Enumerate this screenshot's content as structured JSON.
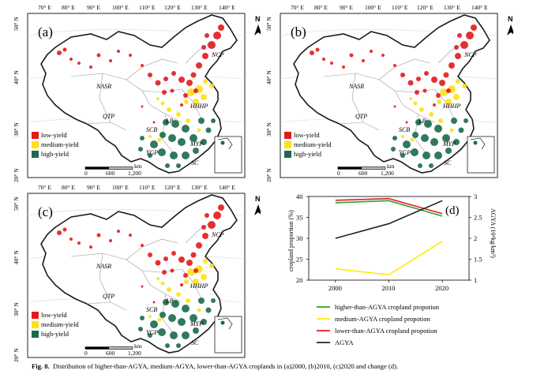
{
  "maps": {
    "lon_labels": [
      "70° E",
      "80° E",
      "90° E",
      "100° E",
      "110° E",
      "120° E",
      "130° E",
      "140° E"
    ],
    "lat_labels": [
      "50° N",
      "40° N",
      "30° N",
      "20° N"
    ],
    "north": "N",
    "regions": {
      "ncp": "NCP",
      "nasr": "NASR",
      "qtp": "QTP",
      "hhhp": "HHHP",
      "lp": "LP",
      "scb": "SCB",
      "myp": "MYP",
      "ygp": "YGP",
      "sc": "SC"
    },
    "legend": [
      {
        "label": "low-yield",
        "color": "#e31a1c"
      },
      {
        "label": "medium-yield",
        "color": "#ffe11a"
      },
      {
        "label": "high-yield",
        "color": "#1b6b4a"
      }
    ],
    "scale": {
      "unit": "km",
      "ticks": [
        "0",
        "600",
        "1,200"
      ]
    },
    "panels": [
      {
        "label": "(a)"
      },
      {
        "label": "(b)"
      },
      {
        "label": "(c)"
      }
    ]
  },
  "chart_data": {
    "type": "line",
    "panel_label": "(d)",
    "x": [
      2000,
      2010,
      2020
    ],
    "x_tick_labels": [
      "2000",
      "2010",
      "2020"
    ],
    "ylabel": "cropland proportion (%)",
    "ylim": [
      20,
      40
    ],
    "y_ticks": [
      20,
      25,
      30,
      35,
      40
    ],
    "y2label": "AGYA (10⁴kg/km²)",
    "y2lim": [
      1,
      3
    ],
    "y2_ticks": [
      "1",
      "1.5",
      "2",
      "2.5",
      "3"
    ],
    "series": [
      {
        "name": "higher-than-AGYA cropland propotion",
        "axis": "left",
        "color": "#2ca02c",
        "values": [
          38.5,
          39.0,
          35.3
        ]
      },
      {
        "name": "medium-AGYA cropland propotion",
        "axis": "left",
        "color": "#ffeb00",
        "values": [
          22.7,
          21.3,
          29.3
        ]
      },
      {
        "name": "lower-than-AGYA cropland propotion",
        "axis": "left",
        "color": "#e31a1c",
        "values": [
          39.1,
          39.5,
          35.9
        ]
      },
      {
        "name": "AGYA",
        "axis": "right",
        "color": "#222222",
        "values": [
          2.0,
          2.35,
          2.9
        ]
      }
    ],
    "legend_position": "bottom"
  },
  "caption": {
    "label": "Fig. 8.",
    "text": "Distribution of higher-than-AGYA, medium-AGYA, lower-than-AGYA croplands in (a)2000, (b)2010, (c)2020 and change (d)."
  }
}
